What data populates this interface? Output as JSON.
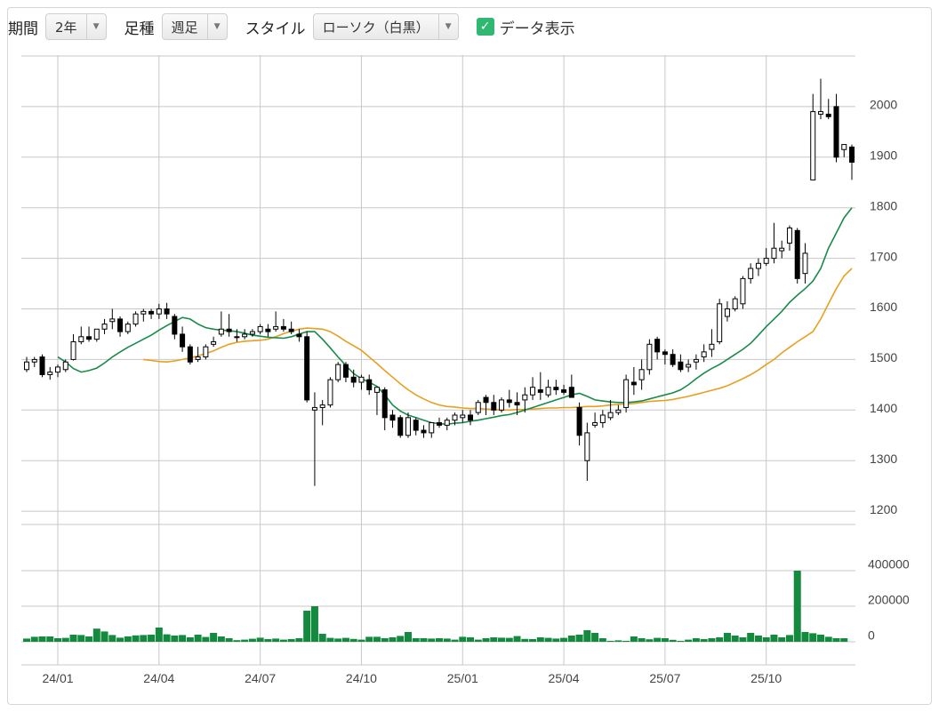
{
  "toolbar": {
    "period_label": "期間",
    "period_value": "2年",
    "ashi_label": "足種",
    "ashi_value": "週足",
    "style_label": "スタイル",
    "style_value": "ローソク（白黒）",
    "show_data_label": "データ表示",
    "show_data_checked": true,
    "check_color": "#2eb872"
  },
  "chart_data": {
    "type": "candlestick",
    "price_ylim": [
      1100,
      2100
    ],
    "price_ticks": [
      "1200",
      "1300",
      "1400",
      "1500",
      "1600",
      "1700",
      "1800",
      "1900",
      "2000"
    ],
    "volume_ylim": [
      0,
      450000
    ],
    "volume_ticks": [
      "0",
      "200000",
      "400000"
    ],
    "x_tick_labels": [
      "24/01",
      "24/04",
      "24/07",
      "24/10",
      "25/01",
      "25/04",
      "25/07",
      "25/10"
    ],
    "colors": {
      "ma_short": "#1a8a4a",
      "ma_long": "#e8a020",
      "volume": "#138a3e",
      "up": "#ffffff",
      "down": "#000000"
    },
    "candles": [
      [
        1480,
        1505,
        1475,
        1495
      ],
      [
        1495,
        1505,
        1485,
        1500
      ],
      [
        1505,
        1510,
        1465,
        1470
      ],
      [
        1470,
        1485,
        1460,
        1475
      ],
      [
        1475,
        1490,
        1465,
        1485
      ],
      [
        1480,
        1500,
        1475,
        1495
      ],
      [
        1500,
        1550,
        1498,
        1535
      ],
      [
        1535,
        1565,
        1530,
        1545
      ],
      [
        1545,
        1565,
        1535,
        1540
      ],
      [
        1540,
        1560,
        1535,
        1560
      ],
      [
        1560,
        1580,
        1550,
        1570
      ],
      [
        1575,
        1600,
        1560,
        1580
      ],
      [
        1580,
        1585,
        1545,
        1555
      ],
      [
        1555,
        1575,
        1550,
        1570
      ],
      [
        1570,
        1595,
        1565,
        1590
      ],
      [
        1590,
        1600,
        1575,
        1595
      ],
      [
        1595,
        1600,
        1580,
        1590
      ],
      [
        1590,
        1610,
        1580,
        1600
      ],
      [
        1600,
        1612,
        1580,
        1590
      ],
      [
        1585,
        1590,
        1540,
        1550
      ],
      [
        1550,
        1565,
        1515,
        1525
      ],
      [
        1525,
        1530,
        1490,
        1495
      ],
      [
        1500,
        1525,
        1495,
        1505
      ],
      [
        1505,
        1530,
        1500,
        1525
      ],
      [
        1530,
        1545,
        1525,
        1535
      ],
      [
        1550,
        1595,
        1545,
        1560
      ],
      [
        1560,
        1590,
        1545,
        1555
      ],
      [
        1545,
        1560,
        1535,
        1545
      ],
      [
        1545,
        1560,
        1540,
        1550
      ],
      [
        1550,
        1560,
        1545,
        1555
      ],
      [
        1555,
        1570,
        1550,
        1565
      ],
      [
        1560,
        1570,
        1545,
        1555
      ],
      [
        1560,
        1595,
        1555,
        1565
      ],
      [
        1565,
        1580,
        1555,
        1560
      ],
      [
        1560,
        1575,
        1550,
        1555
      ],
      [
        1550,
        1560,
        1535,
        1545
      ],
      [
        1545,
        1555,
        1415,
        1420
      ],
      [
        1400,
        1435,
        1250,
        1405
      ],
      [
        1405,
        1420,
        1370,
        1410
      ],
      [
        1410,
        1465,
        1405,
        1460
      ],
      [
        1460,
        1495,
        1455,
        1490
      ],
      [
        1490,
        1495,
        1455,
        1465
      ],
      [
        1465,
        1480,
        1445,
        1455
      ],
      [
        1455,
        1470,
        1440,
        1465
      ],
      [
        1460,
        1470,
        1430,
        1440
      ],
      [
        1435,
        1440,
        1390,
        1445
      ],
      [
        1440,
        1445,
        1360,
        1385
      ],
      [
        1390,
        1400,
        1365,
        1380
      ],
      [
        1385,
        1390,
        1345,
        1350
      ],
      [
        1350,
        1395,
        1345,
        1385
      ],
      [
        1380,
        1385,
        1350,
        1360
      ],
      [
        1360,
        1370,
        1345,
        1355
      ],
      [
        1355,
        1375,
        1345,
        1375
      ],
      [
        1375,
        1385,
        1365,
        1370
      ],
      [
        1370,
        1385,
        1360,
        1380
      ],
      [
        1380,
        1395,
        1370,
        1390
      ],
      [
        1385,
        1400,
        1375,
        1390
      ],
      [
        1390,
        1400,
        1370,
        1380
      ],
      [
        1395,
        1420,
        1390,
        1415
      ],
      [
        1425,
        1430,
        1390,
        1415
      ],
      [
        1415,
        1430,
        1390,
        1400
      ],
      [
        1400,
        1425,
        1395,
        1420
      ],
      [
        1420,
        1440,
        1405,
        1415
      ],
      [
        1415,
        1435,
        1390,
        1410
      ],
      [
        1420,
        1445,
        1395,
        1430
      ],
      [
        1430,
        1465,
        1420,
        1445
      ],
      [
        1440,
        1475,
        1420,
        1435
      ],
      [
        1430,
        1460,
        1425,
        1445
      ],
      [
        1445,
        1460,
        1430,
        1440
      ],
      [
        1440,
        1450,
        1430,
        1435
      ],
      [
        1445,
        1470,
        1430,
        1425
      ],
      [
        1405,
        1415,
        1330,
        1350
      ],
      [
        1300,
        1375,
        1260,
        1355
      ],
      [
        1370,
        1395,
        1365,
        1375
      ],
      [
        1375,
        1400,
        1365,
        1390
      ],
      [
        1385,
        1420,
        1380,
        1395
      ],
      [
        1395,
        1410,
        1390,
        1400
      ],
      [
        1405,
        1470,
        1395,
        1460
      ],
      [
        1455,
        1485,
        1430,
        1450
      ],
      [
        1460,
        1500,
        1440,
        1480
      ],
      [
        1480,
        1540,
        1470,
        1530
      ],
      [
        1540,
        1545,
        1500,
        1515
      ],
      [
        1515,
        1520,
        1490,
        1510
      ],
      [
        1510,
        1520,
        1485,
        1490
      ],
      [
        1495,
        1510,
        1475,
        1480
      ],
      [
        1485,
        1500,
        1475,
        1490
      ],
      [
        1495,
        1510,
        1480,
        1500
      ],
      [
        1505,
        1530,
        1495,
        1515
      ],
      [
        1520,
        1560,
        1505,
        1530
      ],
      [
        1535,
        1620,
        1530,
        1610
      ],
      [
        1585,
        1615,
        1575,
        1600
      ],
      [
        1600,
        1625,
        1595,
        1620
      ],
      [
        1610,
        1665,
        1600,
        1660
      ],
      [
        1660,
        1690,
        1650,
        1680
      ],
      [
        1680,
        1700,
        1665,
        1690
      ],
      [
        1690,
        1720,
        1685,
        1700
      ],
      [
        1700,
        1770,
        1690,
        1720
      ],
      [
        1715,
        1735,
        1700,
        1720
      ],
      [
        1730,
        1765,
        1715,
        1760
      ],
      [
        1755,
        1760,
        1650,
        1660
      ],
      [
        1670,
        1730,
        1650,
        1710
      ],
      [
        1855,
        2025,
        1855,
        1990
      ],
      [
        1985,
        2055,
        1975,
        1990
      ],
      [
        1985,
        2015,
        1975,
        1980
      ],
      [
        2000,
        2025,
        1890,
        1900
      ],
      [
        1915,
        1925,
        1900,
        1925
      ],
      [
        1920,
        1925,
        1855,
        1890
      ]
    ],
    "ma_short": [
      1505,
      1495,
      1482,
      1475,
      1478,
      1483,
      1493,
      1505,
      1515,
      1524,
      1532,
      1540,
      1548,
      1558,
      1567,
      1575,
      1583,
      1580,
      1570,
      1563,
      1560,
      1558,
      1557,
      1555,
      1552,
      1548,
      1546,
      1544,
      1543,
      1542,
      1545,
      1550,
      1555,
      1555,
      1540,
      1523,
      1505,
      1488,
      1472,
      1462,
      1455,
      1447,
      1430,
      1410,
      1398,
      1390,
      1385,
      1380,
      1375,
      1373,
      1372,
      1374,
      1375,
      1378,
      1380,
      1383,
      1386,
      1389,
      1391,
      1395,
      1400,
      1405,
      1410,
      1415,
      1420,
      1425,
      1430,
      1433,
      1427,
      1420,
      1418,
      1416,
      1415,
      1415,
      1416,
      1418,
      1422,
      1426,
      1430,
      1434,
      1440,
      1450,
      1462,
      1473,
      1482,
      1490,
      1500,
      1510,
      1520,
      1532,
      1548,
      1565,
      1580,
      1595,
      1613,
      1627,
      1640,
      1655,
      1680,
      1720,
      1750,
      1780,
      1800
    ],
    "ma_long": [
      1500,
      1498,
      1496,
      1495,
      1497,
      1500,
      1503,
      1507,
      1512,
      1517,
      1524,
      1530,
      1534,
      1536,
      1537,
      1538,
      1540,
      1545,
      1551,
      1556,
      1560,
      1562,
      1561,
      1560,
      1555,
      1546,
      1536,
      1527,
      1518,
      1505,
      1492,
      1478,
      1465,
      1452,
      1440,
      1430,
      1422,
      1415,
      1410,
      1407,
      1406,
      1404,
      1403,
      1403,
      1402,
      1401,
      1400,
      1400,
      1401,
      1401,
      1402,
      1403,
      1404,
      1404,
      1405,
      1405,
      1406,
      1407,
      1407,
      1408,
      1410,
      1411,
      1412,
      1413,
      1415,
      1417,
      1418,
      1419,
      1421,
      1424,
      1427,
      1431,
      1435,
      1439,
      1443,
      1448,
      1455,
      1462,
      1470,
      1479,
      1490,
      1500,
      1513,
      1524,
      1535,
      1545,
      1555,
      1580,
      1610,
      1640,
      1665,
      1680
    ],
    "volume": [
      18000,
      28000,
      30000,
      30000,
      20000,
      22000,
      40000,
      38000,
      30000,
      74000,
      58000,
      38000,
      23000,
      30000,
      36000,
      38000,
      40000,
      80000,
      42000,
      35000,
      38000,
      25000,
      40000,
      27000,
      50000,
      30000,
      20000,
      9000,
      12000,
      17000,
      23000,
      15000,
      18000,
      12000,
      15000,
      20000,
      175000,
      200000,
      45000,
      22000,
      18000,
      22000,
      16000,
      12000,
      28000,
      28000,
      20000,
      25000,
      33000,
      55000,
      20000,
      20000,
      18000,
      20000,
      18000,
      12000,
      28000,
      25000,
      12000,
      20000,
      25000,
      23000,
      22000,
      32000,
      16000,
      15000,
      25000,
      22000,
      18000,
      22000,
      35000,
      40000,
      65000,
      50000,
      20000,
      5000,
      8000,
      5000,
      30000,
      20000,
      14000,
      22000,
      20000,
      11000,
      5000,
      12000,
      20000,
      15000,
      20000,
      25000,
      50000,
      35000,
      25000,
      50000,
      35000,
      25000,
      40000,
      25000,
      38000,
      400000,
      55000,
      48000,
      40000,
      28000,
      20000,
      20000
    ]
  }
}
